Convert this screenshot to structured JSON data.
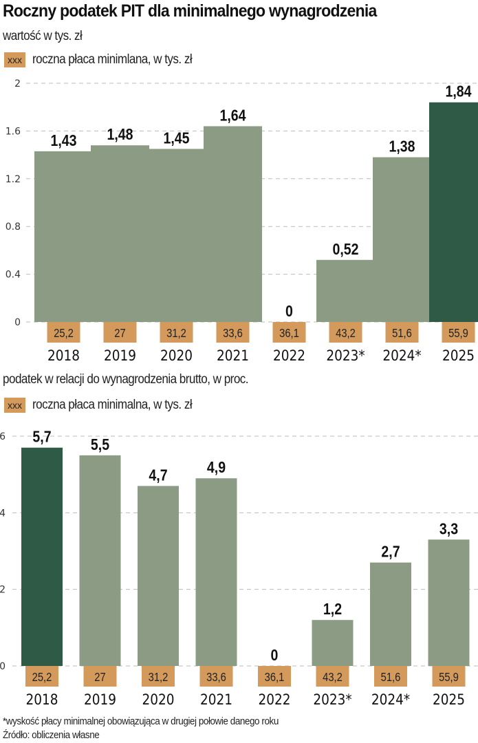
{
  "title": "Roczny podatek PIT dla minimalnego wynagrodzenia",
  "colors": {
    "bar": "#8c9b84",
    "highlight": "#2f5a45",
    "wage_box": "#d39a5c",
    "grid": "#bbbbbb"
  },
  "chart_data": [
    {
      "type": "bar",
      "subtitle": "wartość w tys. zł",
      "legend": {
        "swatch_label": "xxx",
        "label": "roczna płaca minimlana, w tys. zł"
      },
      "categories": [
        "2018",
        "2019",
        "2020",
        "2021",
        "2022",
        "2023*",
        "2024*",
        "2025"
      ],
      "values": [
        1.43,
        1.48,
        1.45,
        1.64,
        0,
        0.52,
        1.38,
        1.84
      ],
      "value_labels": [
        "1,43",
        "1,48",
        "1,45",
        "1,64",
        "0",
        "0,52",
        "1,38",
        "1,84"
      ],
      "highlight_index": 7,
      "wage_labels": [
        "25,2",
        "27",
        "31,2",
        "33,6",
        "36,1",
        "43,2",
        "51,6",
        "55,9"
      ],
      "ylim": [
        0,
        2
      ],
      "yticks": [
        0,
        0.4,
        0.8,
        1.2,
        1.6,
        2
      ],
      "ytick_labels": [
        "0",
        "0.4",
        "0.8",
        "1.2",
        "1.6",
        "2"
      ],
      "grid": true
    },
    {
      "type": "bar",
      "subtitle": "podatek w relacji do wynagrodzenia brutto, w proc.",
      "legend": {
        "swatch_label": "xxx",
        "label": "roczna płaca minimalna, w tys. zł"
      },
      "categories": [
        "2018",
        "2019",
        "2020",
        "2021",
        "2022",
        "2023*",
        "2024*",
        "2025"
      ],
      "values": [
        5.7,
        5.5,
        4.7,
        4.9,
        0,
        1.2,
        2.7,
        3.3
      ],
      "value_labels": [
        "5,7",
        "5,5",
        "4,7",
        "4,9",
        "0",
        "1,2",
        "2,7",
        "3,3"
      ],
      "highlight_index": 0,
      "wage_labels": [
        "25,2",
        "27",
        "31,2",
        "33,6",
        "36,1",
        "43,2",
        "51,6",
        "55,9"
      ],
      "ylim": [
        0,
        6
      ],
      "yticks": [
        0,
        2,
        4,
        6
      ],
      "ytick_labels": [
        "0",
        "2",
        "4",
        "6"
      ],
      "grid": true
    }
  ],
  "footnote": "*wyskość płacy minimalnej  obowiązująca w drugiej połowie danego roku",
  "source": "Źródło: obliczenia własne"
}
